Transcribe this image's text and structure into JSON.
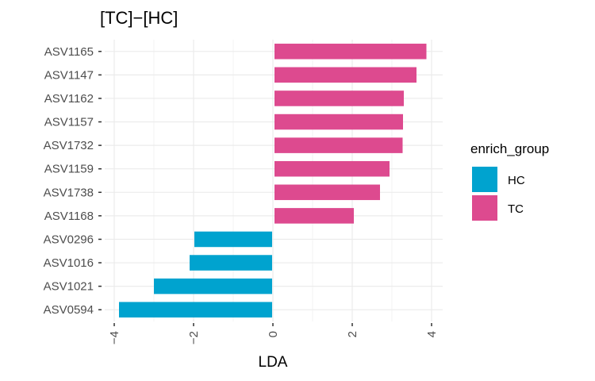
{
  "chart_data": {
    "type": "bar",
    "orientation": "horizontal",
    "title": "[TC]−[HC]",
    "xlabel": "LDA",
    "ylabel": "",
    "xlim": [
      -4.0,
      4.2
    ],
    "x_ticks": [
      -4,
      -2,
      0,
      2,
      4
    ],
    "x_tick_labels": [
      "−4",
      "−2",
      "0",
      "2",
      "4"
    ],
    "grid": true,
    "categories": [
      "ASV1165",
      "ASV1147",
      "ASV1162",
      "ASV1157",
      "ASV1732",
      "ASV1159",
      "ASV1738",
      "ASV1168",
      "ASV0296",
      "ASV1016",
      "ASV1021",
      "ASV0594"
    ],
    "values": [
      3.85,
      3.6,
      3.28,
      3.26,
      3.25,
      2.92,
      2.68,
      2.02,
      -1.98,
      -2.1,
      -3.0,
      -3.88
    ],
    "groups": [
      "TC",
      "TC",
      "TC",
      "TC",
      "TC",
      "TC",
      "TC",
      "TC",
      "HC",
      "HC",
      "HC",
      "HC"
    ],
    "legend": {
      "title": "enrich_group",
      "placement": "right",
      "entries": [
        {
          "label": "HC",
          "color": "#00A3CF"
        },
        {
          "label": "TC",
          "color": "#DD4A8F"
        }
      ]
    }
  }
}
